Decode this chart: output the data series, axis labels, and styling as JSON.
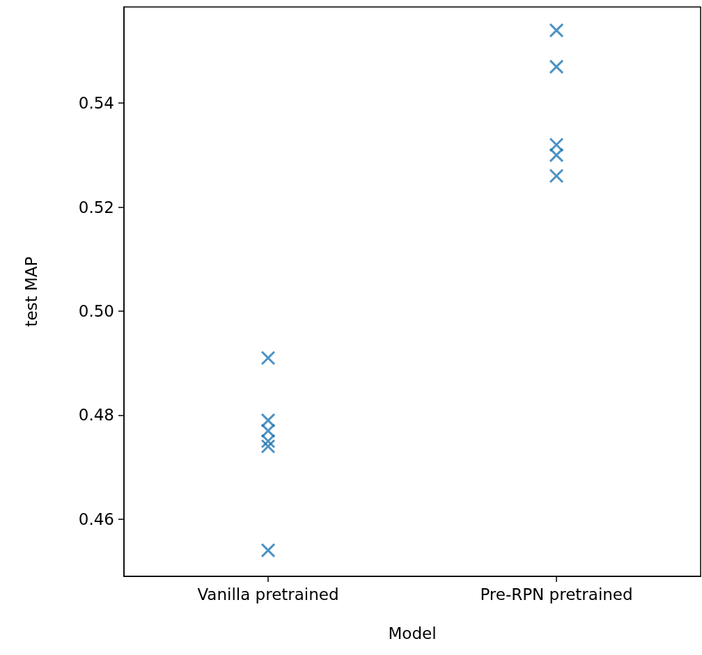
{
  "chart_data": {
    "type": "scatter",
    "xlabel": "Model",
    "ylabel": "test MAP",
    "categories": [
      "Vanilla pretrained",
      "Pre-RPN pretrained"
    ],
    "series": [
      {
        "color": "#1f77b4",
        "x": [
          "Vanilla pretrained",
          "Vanilla pretrained",
          "Vanilla pretrained",
          "Vanilla pretrained",
          "Vanilla pretrained",
          "Vanilla pretrained"
        ],
        "values": [
          0.491,
          0.479,
          0.477,
          0.475,
          0.474,
          0.454
        ]
      },
      {
        "color": "#1f77b4",
        "x": [
          "Pre-RPN pretrained",
          "Pre-RPN pretrained",
          "Pre-RPN pretrained",
          "Pre-RPN pretrained",
          "Pre-RPN pretrained"
        ],
        "values": [
          0.554,
          0.547,
          0.532,
          0.53,
          0.526
        ]
      }
    ],
    "marker": "cross",
    "grid": false,
    "ylim": [
      0.449,
      0.5585
    ],
    "yticks": [
      0.46,
      0.48,
      {
        "value": 0.5,
        "label": "0.50"
      },
      0.52,
      0.54
    ]
  }
}
